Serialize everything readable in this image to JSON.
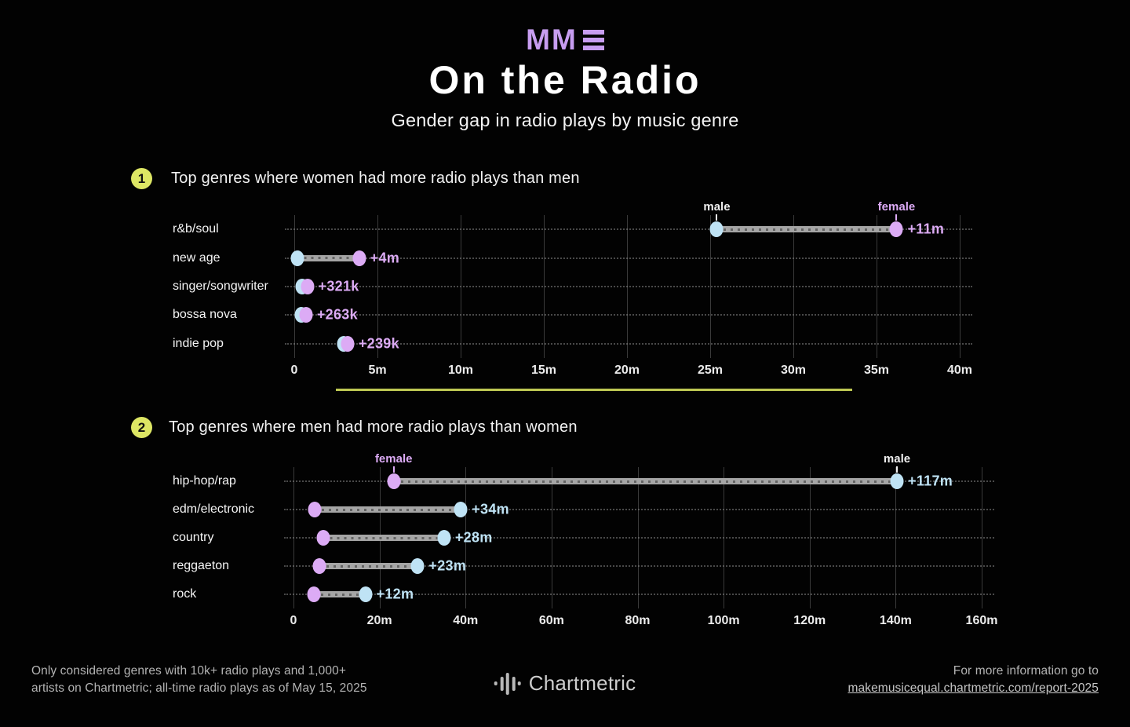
{
  "header": {
    "logo": "MM",
    "title": "On the Radio",
    "subtitle": "Gender gap in radio plays by music genre"
  },
  "sections": [
    {
      "number": "1",
      "heading": "Top genres where women had more radio plays than men"
    },
    {
      "number": "2",
      "heading": "Top genres where men had more radio plays than women"
    }
  ],
  "chart_data": [
    {
      "type": "dumbbell",
      "title": "Top genres where women had more radio plays than men",
      "categories": [
        "r&b/soul",
        "new age",
        "singer/songwriter",
        "bossa nova",
        "indie pop"
      ],
      "series": [
        {
          "name": "male",
          "values": [
            25.4,
            0.2,
            0.45,
            0.44,
            2.95
          ]
        },
        {
          "name": "female",
          "values": [
            36.2,
            3.9,
            0.78,
            0.7,
            3.2
          ]
        }
      ],
      "gap_labels": [
        "+11m",
        "+4m",
        "+321k",
        "+263k",
        "+239k"
      ],
      "gap_label_color_series": "female",
      "xlim": [
        0,
        40
      ],
      "xticks": [
        "0",
        "5m",
        "10m",
        "15m",
        "20m",
        "25m",
        "30m",
        "35m",
        "40m"
      ],
      "xtick_values": [
        0,
        5,
        10,
        15,
        20,
        25,
        30,
        35,
        40
      ],
      "point_labels": [
        {
          "series": "male",
          "row": 0,
          "text": "male"
        },
        {
          "series": "female",
          "row": 0,
          "text": "female"
        }
      ],
      "grid": true,
      "legend": "none"
    },
    {
      "type": "dumbbell",
      "title": "Top genres where men had more radio plays than women",
      "categories": [
        "hip-hop/rap",
        "edm/electronic",
        "country",
        "reggaeton",
        "rock"
      ],
      "series": [
        {
          "name": "female",
          "values": [
            23.3,
            4.9,
            7.0,
            6.0,
            4.7
          ]
        },
        {
          "name": "male",
          "values": [
            140.3,
            38.9,
            35.0,
            28.9,
            16.7
          ]
        }
      ],
      "gap_labels": [
        "+117m",
        "+34m",
        "+28m",
        "+23m",
        "+12m"
      ],
      "gap_label_color_series": "male",
      "xlim": [
        0,
        160
      ],
      "xticks": [
        "0",
        "20m",
        "40m",
        "60m",
        "80m",
        "100m",
        "120m",
        "140m",
        "160m"
      ],
      "xtick_values": [
        0,
        20,
        40,
        60,
        80,
        100,
        120,
        140,
        160
      ],
      "point_labels": [
        {
          "series": "female",
          "row": 0,
          "text": "female"
        },
        {
          "series": "male",
          "row": 0,
          "text": "male"
        }
      ],
      "grid": true,
      "legend": "none"
    }
  ],
  "footer": {
    "note_line1": "Only considered genres with 10k+ radio plays and 1,000+",
    "note_line2": "artists on Chartmetric; all-time radio plays as of May 15, 2025",
    "brand": "Chartmetric",
    "info_line1": "For more information go to",
    "info_link": "makemusicequal.chartmetric.com/report-2025"
  },
  "colors": {
    "background": "#020202",
    "accent_purple": "#c79df0",
    "female": "#dcabf5",
    "male": "#bfe3f5",
    "annotation_male": "#f0f0f0",
    "bar": "#a5a5a5",
    "badge": "#dde664",
    "divider": "#bec853",
    "grid": "#3a3a3a",
    "text": "#f2f2f2",
    "muted": "#b3b3b3"
  }
}
